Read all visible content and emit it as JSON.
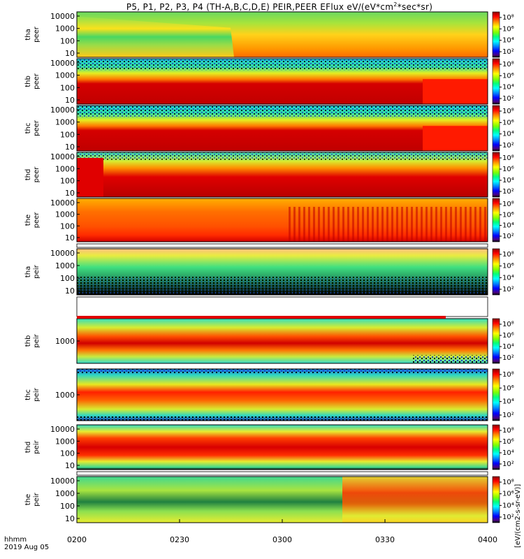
{
  "title": "P5, P1, P2, P3, P4 (TH-A,B,C,D,E) PEIR,PEER EFlux eV/(eV*cm2*sec*sr)",
  "title_parts": {
    "pre": "P5, P1, P2, P3, P4 (TH-A,B,C,D,E) PEIR,PEER EFlux eV/(eV*cm",
    "sup": "2",
    "post": "*sec*sr)"
  },
  "x_axis": {
    "label_top": "hhmm",
    "label_bottom": "2019 Aug 05",
    "ticks": [
      "0200",
      "0230",
      "0300",
      "0330",
      "0400"
    ]
  },
  "colorbar": {
    "label": "[eV/(cm2-s-sr-eV)]",
    "tick_labels": [
      "10⁸",
      "10⁶",
      "10⁴",
      "10²"
    ],
    "colors": [
      "#8b0000",
      "#ff0000",
      "#ff8c00",
      "#ffff00",
      "#7fff00",
      "#00ff7f",
      "#00ffff",
      "#0080ff",
      "#0000ff",
      "#4b0082",
      "#000000"
    ]
  },
  "chart_data": {
    "type": "heatmap",
    "x_range": [
      "0200",
      "0400"
    ],
    "y_scale": "log",
    "panels": [
      {
        "probe": "tha",
        "species": "peer",
        "ylabel": "tha peer",
        "yticks": [
          "10000",
          "1000",
          "100",
          "10"
        ]
      },
      {
        "probe": "thb",
        "species": "peer",
        "ylabel": "thb peer",
        "yticks": [
          "10000",
          "1000",
          "100",
          "10"
        ]
      },
      {
        "probe": "thc",
        "species": "peer",
        "ylabel": "thc peer",
        "yticks": [
          "10000",
          "1000",
          "100",
          "10"
        ]
      },
      {
        "probe": "thd",
        "species": "peer",
        "ylabel": "thd peer",
        "yticks": [
          "10000",
          "1000",
          "100",
          "10"
        ]
      },
      {
        "probe": "the",
        "species": "peer",
        "ylabel": "the peer",
        "yticks": [
          "10000",
          "1000",
          "100",
          "10"
        ]
      },
      {
        "probe": "tha",
        "species": "peir",
        "ylabel": "tha peir",
        "yticks": [
          "10000",
          "1000",
          "100",
          "10"
        ]
      },
      {
        "probe": "thb",
        "species": "peir",
        "ylabel": "thb peir",
        "yticks": [
          "1000"
        ]
      },
      {
        "probe": "thc",
        "species": "peir",
        "ylabel": "thc peir",
        "yticks": [
          "1000"
        ]
      },
      {
        "probe": "thd",
        "species": "peir",
        "ylabel": "thd peir",
        "yticks": [
          "10000",
          "1000",
          "100",
          "10"
        ]
      },
      {
        "probe": "the",
        "species": "peir",
        "ylabel": "the peir",
        "yticks": [
          "10000",
          "1000",
          "100",
          "10"
        ]
      }
    ]
  }
}
